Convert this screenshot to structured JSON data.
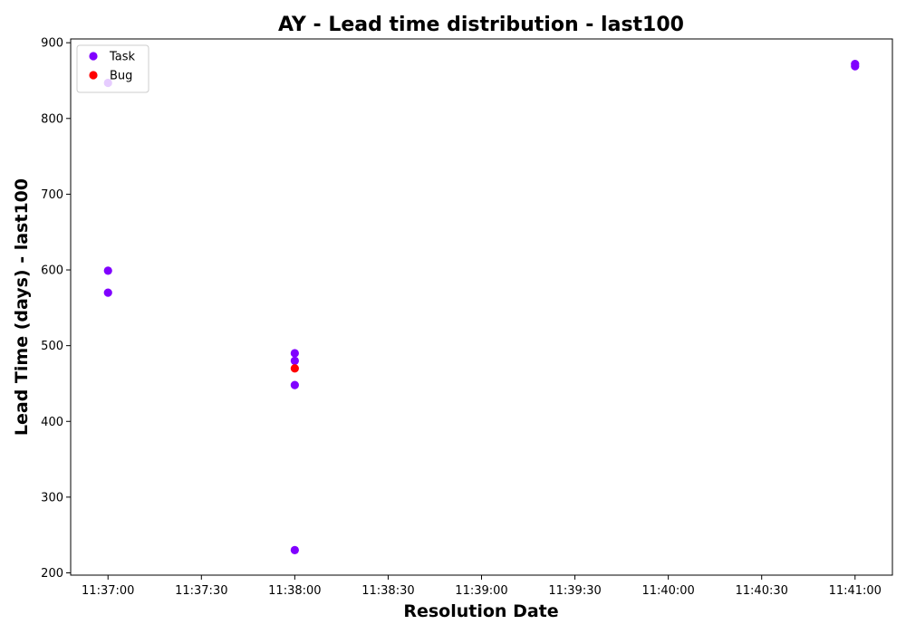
{
  "chart_data": {
    "type": "scatter",
    "title": "AY - Lead time distribution - last100",
    "xlabel": "Resolution Date",
    "ylabel": "Lead Time (days) - last100",
    "x_ticks": [
      "11:37:00",
      "11:37:30",
      "11:38:00",
      "11:38:30",
      "11:39:00",
      "11:39:30",
      "11:40:00",
      "11:40:30",
      "11:41:00"
    ],
    "y_ticks": [
      200,
      300,
      400,
      500,
      600,
      700,
      800,
      900
    ],
    "xlim": [
      "11:36:48",
      "11:41:12"
    ],
    "ylim": [
      197,
      905
    ],
    "grid": false,
    "legend_position": "upper-left",
    "series": [
      {
        "name": "Task",
        "color": "#8000ff",
        "points": [
          {
            "x": "11:37:00",
            "y": 847
          },
          {
            "x": "11:37:00",
            "y": 599
          },
          {
            "x": "11:37:00",
            "y": 570
          },
          {
            "x": "11:38:00",
            "y": 490
          },
          {
            "x": "11:38:00",
            "y": 480
          },
          {
            "x": "11:38:00",
            "y": 448
          },
          {
            "x": "11:38:00",
            "y": 230
          },
          {
            "x": "11:41:00",
            "y": 872
          },
          {
            "x": "11:41:00",
            "y": 869
          }
        ]
      },
      {
        "name": "Bug",
        "color": "#ff0000",
        "points": [
          {
            "x": "11:38:00",
            "y": 470
          }
        ]
      }
    ]
  }
}
